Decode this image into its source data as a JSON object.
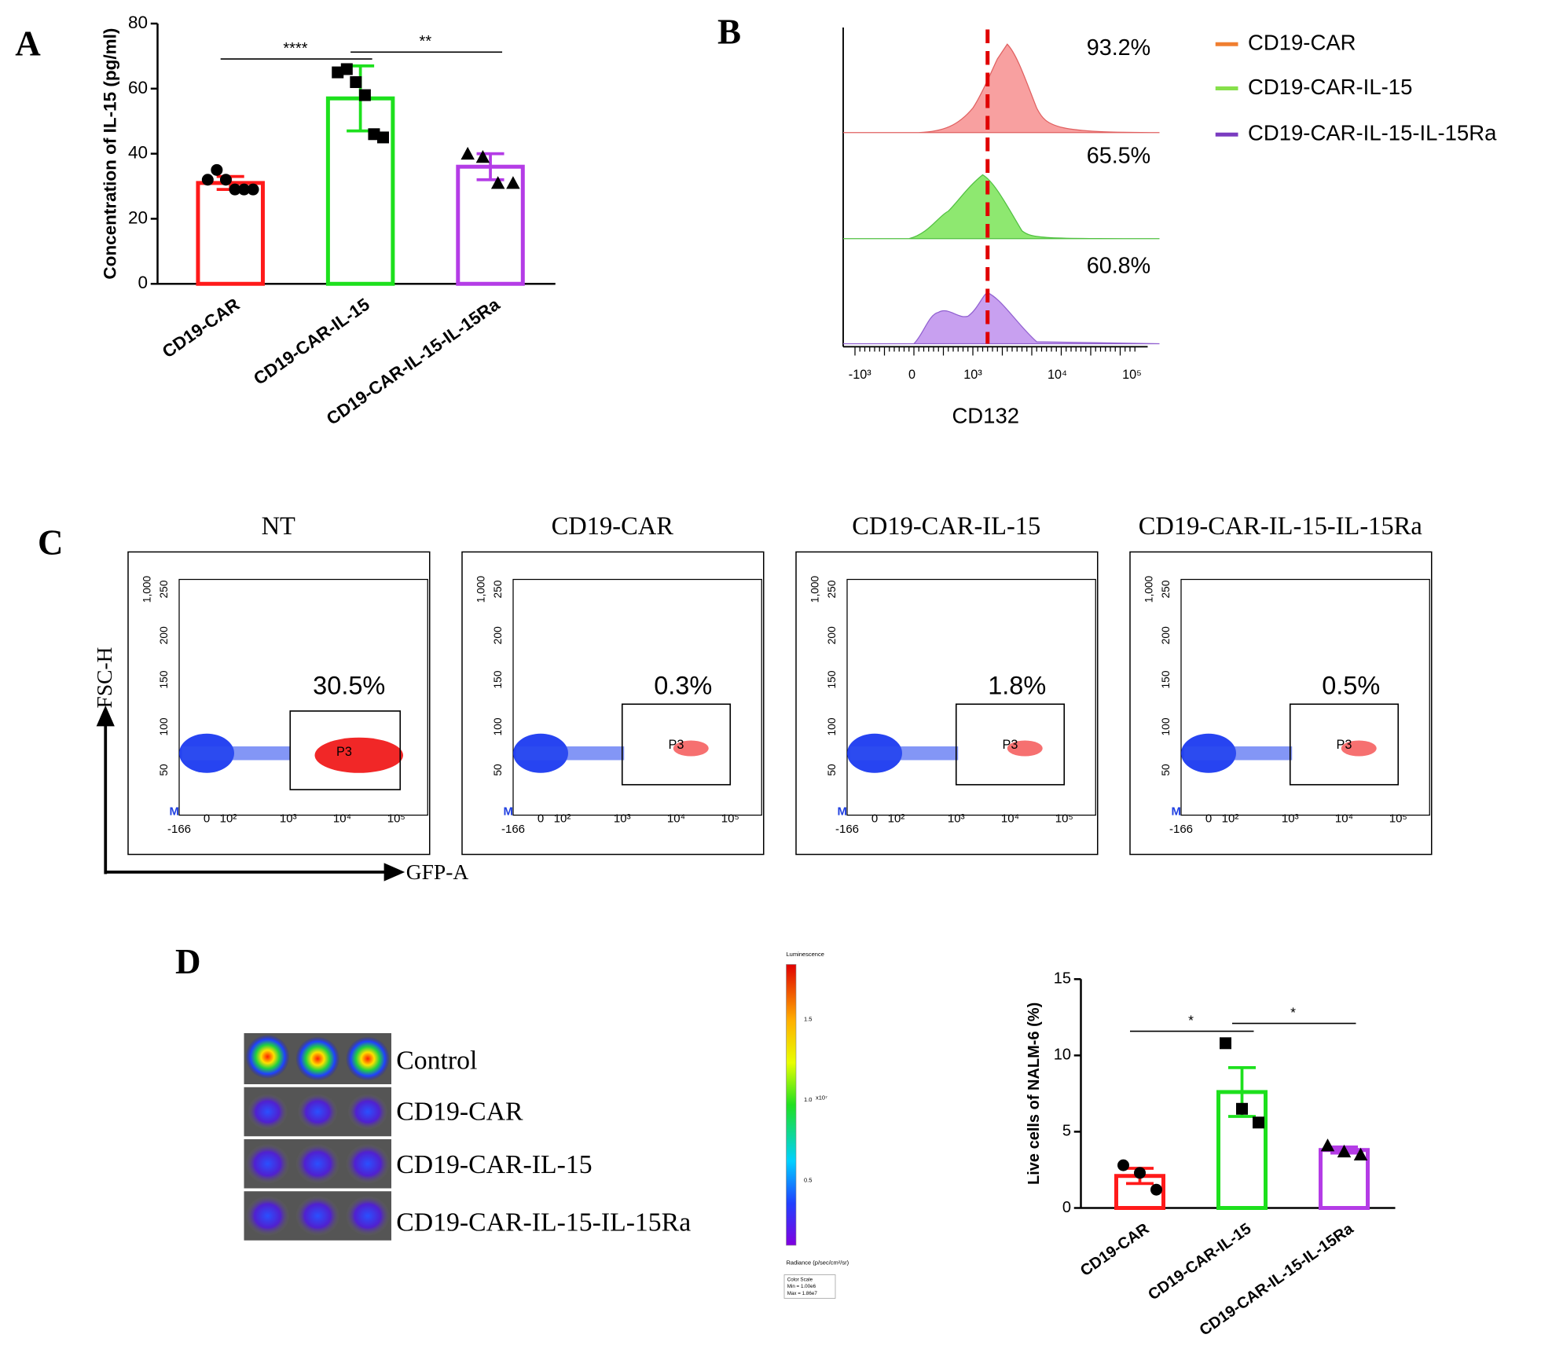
{
  "panel_labels": [
    "A",
    "B",
    "C",
    "D"
  ],
  "chart_data": [
    {
      "type": "bar",
      "ylabel": "Concentration of IL-15 (pg/ml)",
      "categories": [
        "CD19-CAR",
        "CD19-CAR-IL-15",
        "CD19-CAR-IL-15-IL-15Ra"
      ],
      "values": [
        31,
        57,
        36
      ],
      "errors": [
        2,
        10,
        4
      ],
      "points": [
        [
          32,
          35,
          32,
          29,
          29,
          29
        ],
        [
          65,
          66,
          62,
          58,
          46,
          45
        ],
        [
          40,
          39,
          31,
          31
        ]
      ],
      "colors": [
        "#ff1a1a",
        "#1de01d",
        "#b43ce6"
      ],
      "markers": [
        "circle",
        "square",
        "triangle"
      ],
      "ylim": [
        0,
        80
      ],
      "yticks": [
        0,
        20,
        40,
        60,
        80
      ],
      "significance": [
        "****",
        "**"
      ]
    },
    {
      "type": "bar",
      "ylabel": "Live cells of NALM-6 (%)",
      "categories": [
        "CD19-CAR",
        "CD19-CAR-IL-15",
        "CD19-CAR-IL-15-IL-15Ra"
      ],
      "values": [
        2.1,
        7.6,
        3.8
      ],
      "errors": [
        0.5,
        1.6,
        0.2
      ],
      "points": [
        [
          2.8,
          2.3,
          1.2
        ],
        [
          10.8,
          6.5,
          5.6
        ],
        [
          4.1,
          3.7,
          3.5
        ]
      ],
      "colors": [
        "#ff1a1a",
        "#1de01d",
        "#b43ce6"
      ],
      "markers": [
        "circle",
        "square",
        "triangle"
      ],
      "ylim": [
        0,
        15
      ],
      "yticks": [
        0,
        5,
        10,
        15
      ],
      "significance": [
        "*",
        "*"
      ]
    }
  ],
  "flow_histogram": {
    "legend": [
      {
        "name": "CD19-CAR",
        "color": "#f07f30"
      },
      {
        "name": "CD19-CAR-IL-15",
        "color": "#86e04a"
      },
      {
        "name": "CD19-CAR-IL-15-IL-15Ra",
        "color": "#7a3cc0"
      }
    ],
    "percentages": [
      "93.2%",
      "65.5%",
      "60.8%"
    ],
    "xticks": [
      "-10³",
      "0",
      "10³",
      "10⁴",
      "10⁵"
    ],
    "xlabel": "CD132"
  },
  "flow_plots": {
    "y_label": "FSC-H",
    "x_label": "GFP-A",
    "y_ticks": [
      "1,000",
      "250",
      "200",
      "150",
      "100",
      "50"
    ],
    "x_ticks": [
      "-166",
      "0",
      "10²",
      "10³",
      "10⁴",
      "10⁵"
    ],
    "marker": "M",
    "gate": "P3",
    "plots": [
      {
        "title": "NT",
        "percent": "30.5%"
      },
      {
        "title": "CD19-CAR",
        "percent": "0.3%"
      },
      {
        "title": "CD19-CAR-IL-15",
        "percent": "1.8%"
      },
      {
        "title": "CD19-CAR-IL-15-IL-15Ra",
        "percent": "0.5%"
      }
    ]
  },
  "imaging": {
    "rows": [
      "Control",
      "CD19-CAR",
      "CD19-CAR-IL-15",
      "CD19-CAR-IL-15-IL-15Ra"
    ],
    "scale": {
      "title": "Luminescence",
      "ticks": [
        "1.5",
        "1.0",
        "0.5"
      ],
      "multiplier": "x10⁷",
      "unit": "Radiance (p/sec/cm²/sr)",
      "box": [
        "Color Scale",
        "Min = 1.00e6",
        "Max = 1.86e7"
      ]
    }
  }
}
